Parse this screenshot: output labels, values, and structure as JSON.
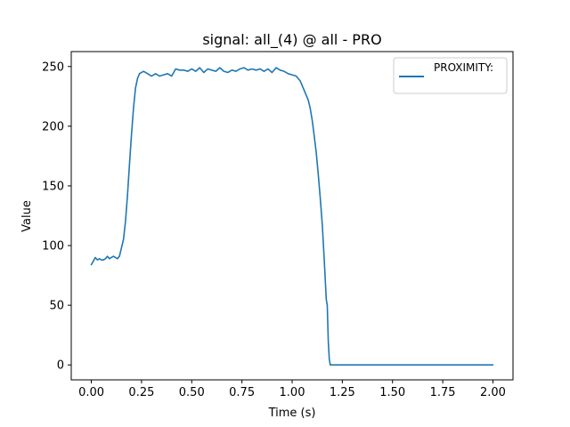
{
  "chart_data": {
    "type": "line",
    "title": "signal: all_(4) @ all - PRO",
    "xlabel": "Time (s)",
    "ylabel": "Value",
    "xlim": [
      -0.1,
      2.1
    ],
    "ylim": [
      -12.5,
      262.5
    ],
    "xticks": [
      0.0,
      0.25,
      0.5,
      0.75,
      1.0,
      1.25,
      1.5,
      1.75,
      2.0
    ],
    "xtick_labels": [
      "0.00",
      "0.25",
      "0.50",
      "0.75",
      "1.00",
      "1.25",
      "1.50",
      "1.75",
      "2.00"
    ],
    "yticks": [
      0,
      50,
      100,
      150,
      200,
      250
    ],
    "ytick_labels": [
      "0",
      "50",
      "100",
      "150",
      "200",
      "250"
    ],
    "grid": false,
    "legend_position": "top-right",
    "colors": {
      "series": "#1f77b4"
    },
    "series": [
      {
        "name": "PROXIMITY:",
        "x": [
          0.0,
          0.01,
          0.02,
          0.03,
          0.04,
          0.05,
          0.06,
          0.07,
          0.08,
          0.09,
          0.1,
          0.11,
          0.12,
          0.13,
          0.14,
          0.15,
          0.16,
          0.17,
          0.18,
          0.19,
          0.2,
          0.21,
          0.22,
          0.23,
          0.24,
          0.25,
          0.26,
          0.27,
          0.28,
          0.3,
          0.32,
          0.34,
          0.36,
          0.38,
          0.4,
          0.42,
          0.44,
          0.46,
          0.48,
          0.5,
          0.52,
          0.54,
          0.56,
          0.58,
          0.6,
          0.62,
          0.64,
          0.66,
          0.68,
          0.7,
          0.72,
          0.74,
          0.76,
          0.78,
          0.8,
          0.82,
          0.84,
          0.86,
          0.88,
          0.9,
          0.92,
          0.94,
          0.96,
          0.98,
          1.0,
          1.02,
          1.04,
          1.06,
          1.07,
          1.08,
          1.09,
          1.1,
          1.11,
          1.12,
          1.13,
          1.14,
          1.15,
          1.16,
          1.17,
          1.175,
          1.18,
          1.185,
          1.19,
          1.25,
          1.5,
          1.75,
          2.0
        ],
        "values": [
          84,
          87,
          90,
          88,
          89,
          88,
          88,
          89,
          91,
          89,
          90,
          91,
          90,
          89,
          91,
          98,
          105,
          120,
          142,
          168,
          193,
          215,
          232,
          240,
          244,
          245,
          246,
          245,
          244,
          242,
          244,
          242,
          243,
          244,
          242,
          248,
          247,
          247,
          246,
          248,
          246,
          249,
          245,
          248,
          247,
          246,
          249,
          246,
          245,
          247,
          246,
          248,
          249,
          247,
          248,
          247,
          248,
          246,
          248,
          245,
          249,
          247,
          246,
          244,
          243,
          242,
          238,
          230,
          226,
          222,
          215,
          205,
          192,
          178,
          160,
          140,
          118,
          88,
          55,
          50,
          20,
          5,
          0,
          0,
          0,
          0,
          0
        ]
      }
    ]
  }
}
